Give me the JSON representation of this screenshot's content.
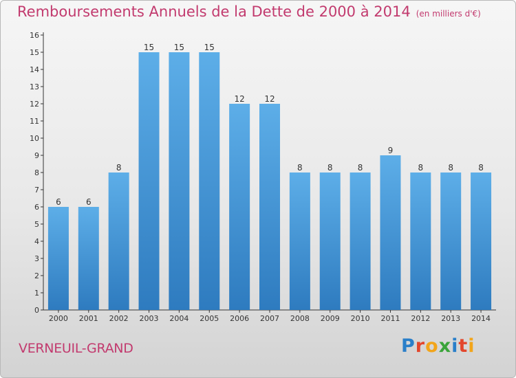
{
  "page": {
    "title": "Remboursements Annuels de la Dette de 2000 à 2014",
    "unit_note": "(en milliers d'€)",
    "commune": "VERNEUIL-GRAND",
    "logo": {
      "letters": [
        "P",
        "r",
        "o",
        "x",
        "i",
        "t",
        "i"
      ],
      "text": "Proxiti"
    }
  },
  "chart_data": {
    "type": "bar",
    "title": "Remboursements Annuels de la Dette de 2000 à 2014",
    "subtitle": "(en milliers d'€)",
    "xlabel": "",
    "ylabel": "",
    "categories": [
      "2000",
      "2001",
      "2002",
      "2003",
      "2004",
      "2005",
      "2006",
      "2007",
      "2008",
      "2009",
      "2010",
      "2011",
      "2012",
      "2013",
      "2014"
    ],
    "values": [
      6,
      6,
      8,
      15,
      15,
      15,
      12,
      12,
      8,
      8,
      8,
      9,
      8,
      8,
      8
    ],
    "ylim": [
      0,
      16
    ],
    "yticks": [
      0,
      1,
      2,
      3,
      4,
      5,
      6,
      7,
      8,
      9,
      10,
      11,
      12,
      13,
      14,
      15,
      16
    ],
    "grid": false,
    "legend": "none",
    "colors": {
      "bar_top": "#5daee8",
      "bar_bottom": "#2e7bbf",
      "title": "#c23a6e"
    }
  }
}
